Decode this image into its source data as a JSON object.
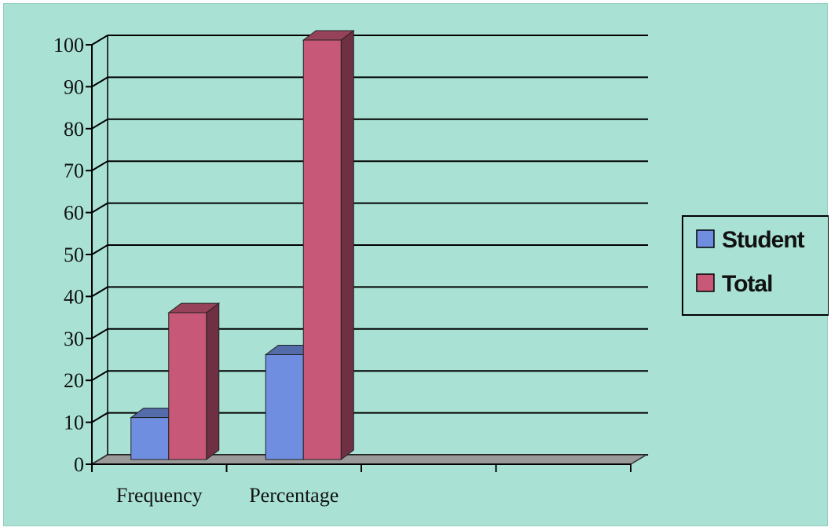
{
  "chart_data": {
    "type": "bar",
    "style": "3d-clustered-column",
    "categories": [
      "Frequency",
      "Percentage",
      "",
      ""
    ],
    "series": [
      {
        "name": "Student",
        "values": [
          10,
          25,
          null,
          null
        ],
        "color": "#6f8ee0"
      },
      {
        "name": "Total",
        "values": [
          35,
          100,
          null,
          null
        ],
        "color": "#c85878"
      }
    ],
    "ylim": [
      0,
      100
    ],
    "yticks": [
      "0",
      "10",
      "20",
      "30",
      "40",
      "50",
      "60",
      "70",
      "80",
      "90",
      "100"
    ],
    "grid": true,
    "legend": "right",
    "title": "",
    "xlabel": "",
    "ylabel": "",
    "background_color": "#a9e2d4",
    "floor_color": "#9a9a9a"
  }
}
